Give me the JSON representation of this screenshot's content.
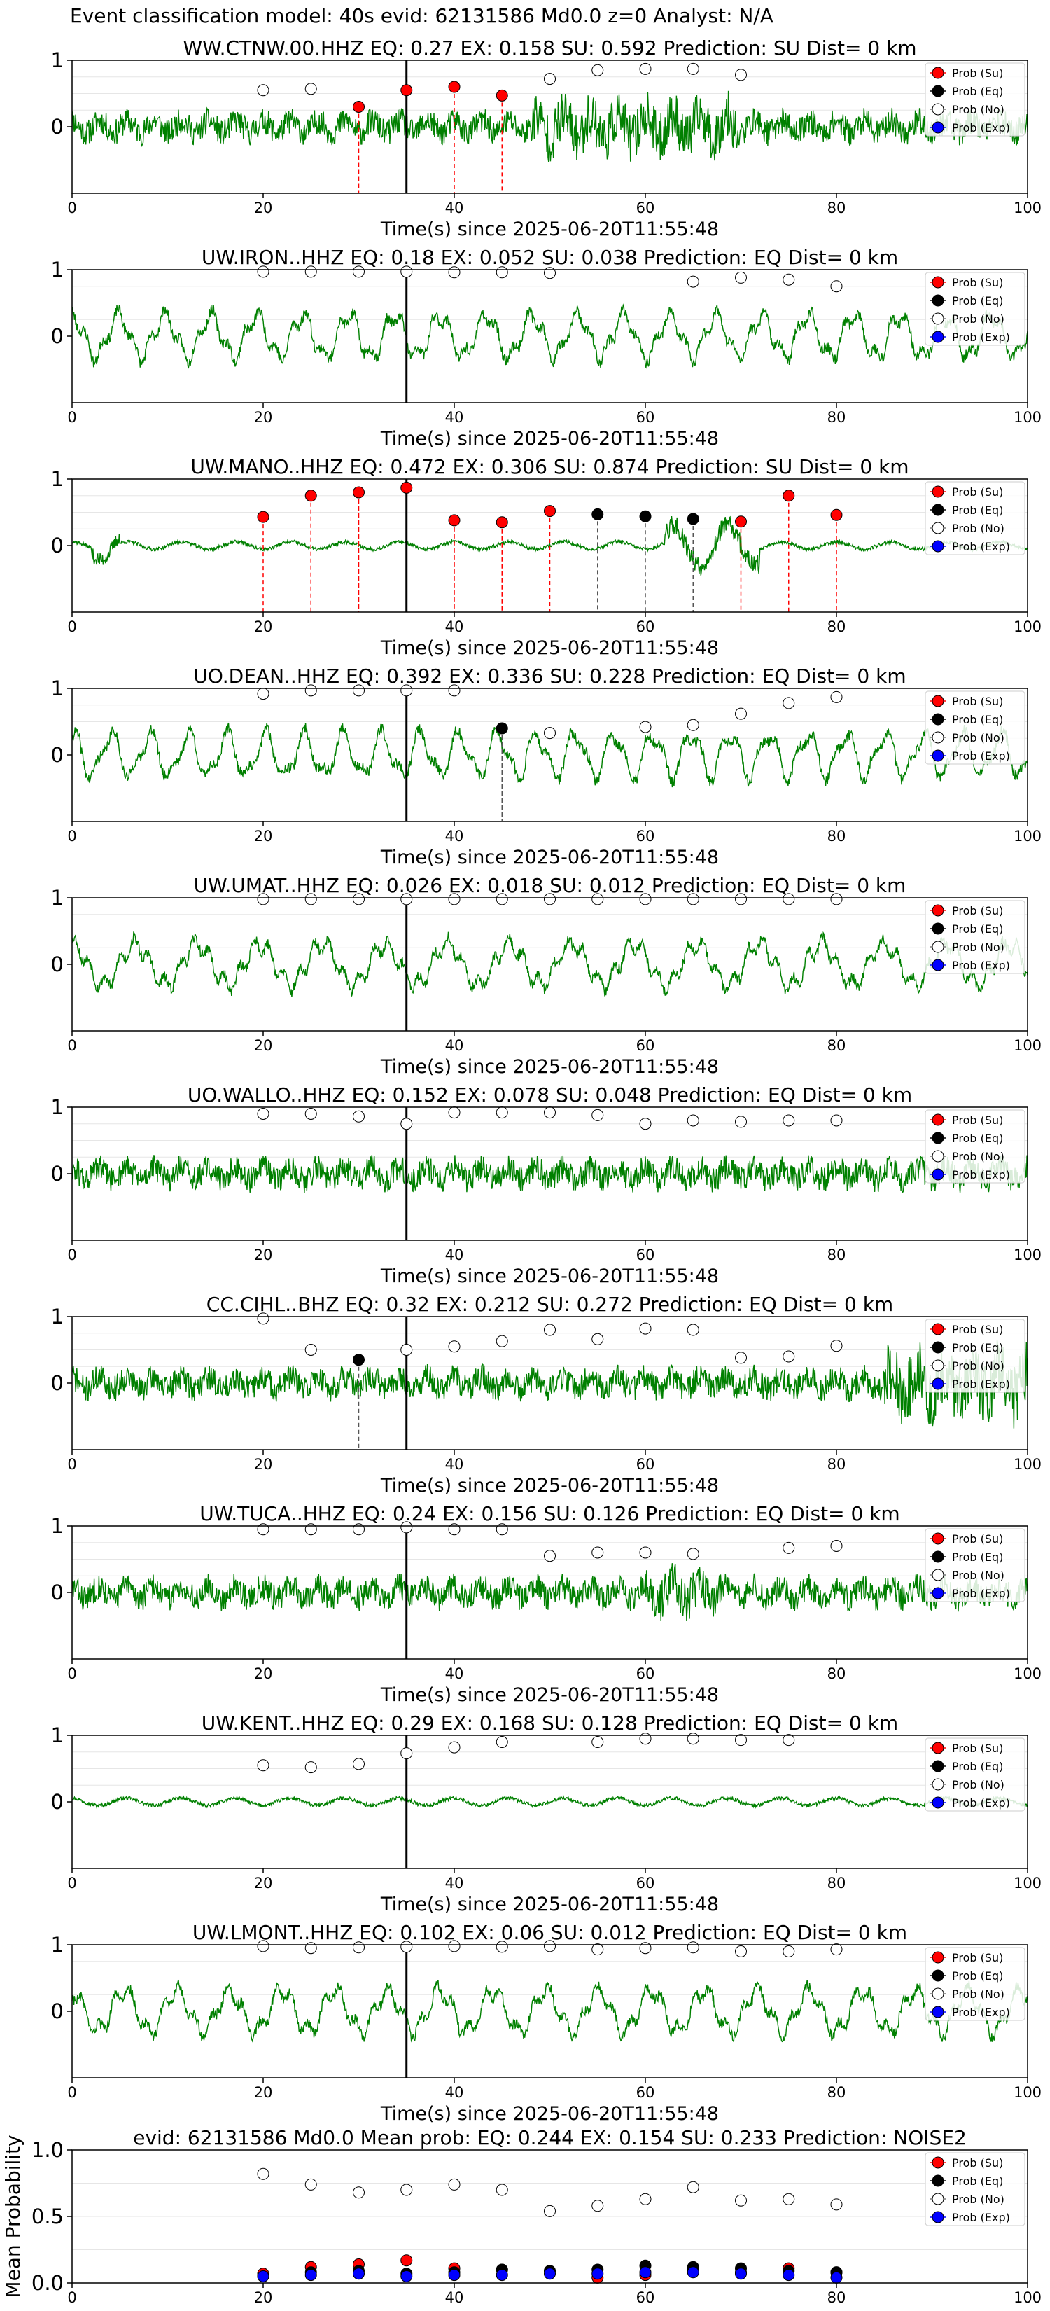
{
  "page": {
    "title": "Event classification model: 40s evid: 62131586 Md0.0 z=0 Analyst: N/A"
  },
  "legend_labels": [
    "Prob (Su)",
    "Prob (Eq)",
    "Prob (No)",
    "Prob (Exp)"
  ],
  "colors": {
    "su": "#ff0000",
    "eq": "#000000",
    "no": "#ffffff",
    "exp": "#0000ff",
    "trace": "#008000",
    "su_line": "#ff0000",
    "eq_line": "#555555"
  },
  "chart_data": [
    {
      "type": "line",
      "title": "WW.CTNW.00.HHZ   EQ: 0.27  EX: 0.158  SU: 0.592   Prediction: SU    Dist= 0 km",
      "xlabel": "Time(s) since 2025-06-20T11:55:48",
      "ylabel": "",
      "xlim": [
        0,
        100
      ],
      "ylim": [
        -1,
        1
      ],
      "xticks": [
        "0",
        "20",
        "40",
        "60",
        "80",
        "100"
      ],
      "yticks": [
        "1",
        "0"
      ],
      "onset": 35,
      "legend": "right",
      "trace_seed": 11,
      "trace_character": "broadband noise, strong energy 50-70s",
      "series": [
        {
          "name": "Prob (Su)",
          "x": [
            30,
            35,
            40,
            45
          ],
          "y": [
            0.3,
            0.55,
            0.6,
            0.47
          ]
        },
        {
          "name": "Prob (Eq)",
          "x": [],
          "y": []
        },
        {
          "name": "Prob (No)",
          "x": [
            20,
            25,
            50,
            55,
            60,
            65,
            70
          ],
          "y": [
            0.55,
            0.57,
            0.72,
            0.85,
            0.87,
            0.87,
            0.78
          ]
        },
        {
          "name": "Prob (Exp)",
          "x": [],
          "y": []
        }
      ],
      "su_lines": [
        30,
        40,
        45
      ],
      "eq_lines": []
    },
    {
      "type": "line",
      "title": "UW.IRON..HHZ   EQ: 0.18  EX: 0.052  SU: 0.038   Prediction: EQ    Dist= 0 km",
      "xlabel": "Time(s) since 2025-06-20T11:55:48",
      "ylabel": "",
      "xlim": [
        0,
        100
      ],
      "ylim": [
        -1,
        1
      ],
      "xticks": [
        "0",
        "20",
        "40",
        "60",
        "80",
        "100"
      ],
      "yticks": [
        "1",
        "0"
      ],
      "onset": 35,
      "legend": "right",
      "trace_seed": 23,
      "series": [
        {
          "name": "Prob (Su)",
          "x": [],
          "y": []
        },
        {
          "name": "Prob (Eq)",
          "x": [],
          "y": []
        },
        {
          "name": "Prob (No)",
          "x": [
            20,
            25,
            30,
            35,
            40,
            45,
            50,
            65,
            70,
            75,
            80
          ],
          "y": [
            0.97,
            0.97,
            0.97,
            0.97,
            0.96,
            0.96,
            0.95,
            0.82,
            0.88,
            0.85,
            0.75
          ]
        },
        {
          "name": "Prob (Exp)",
          "x": [],
          "y": []
        }
      ],
      "su_lines": [],
      "eq_lines": []
    },
    {
      "type": "line",
      "title": "UW.MANO..HHZ   EQ: 0.472  EX: 0.306  SU: 0.874   Prediction: SU    Dist= 0 km",
      "xlabel": "Time(s) since 2025-06-20T11:55:48",
      "ylabel": "",
      "xlim": [
        0,
        100
      ],
      "ylim": [
        -1,
        1
      ],
      "xticks": [
        "0",
        "20",
        "40",
        "60",
        "80",
        "100"
      ],
      "yticks": [
        "1",
        "0"
      ],
      "onset": 35,
      "legend": "right",
      "trace_seed": 37,
      "series": [
        {
          "name": "Prob (Su)",
          "x": [
            20,
            25,
            30,
            35,
            40,
            45,
            50,
            70,
            75,
            80
          ],
          "y": [
            0.43,
            0.75,
            0.8,
            0.87,
            0.38,
            0.35,
            0.52,
            0.36,
            0.75,
            0.46
          ]
        },
        {
          "name": "Prob (Eq)",
          "x": [
            55,
            60,
            65
          ],
          "y": [
            0.47,
            0.44,
            0.4
          ]
        },
        {
          "name": "Prob (No)",
          "x": [],
          "y": []
        },
        {
          "name": "Prob (Exp)",
          "x": [],
          "y": []
        }
      ],
      "su_lines": [
        20,
        25,
        30,
        40,
        45,
        50,
        70,
        75,
        80
      ],
      "eq_lines": [
        55,
        60,
        65
      ]
    },
    {
      "type": "line",
      "title": "UO.DEAN..HHZ   EQ: 0.392  EX: 0.336  SU: 0.228   Prediction: EQ    Dist= 0 km",
      "xlabel": "Time(s) since 2025-06-20T11:55:48",
      "ylabel": "",
      "xlim": [
        0,
        100
      ],
      "ylim": [
        -1,
        1
      ],
      "xticks": [
        "0",
        "20",
        "40",
        "60",
        "80",
        "100"
      ],
      "yticks": [
        "1",
        "0"
      ],
      "onset": 35,
      "legend": "right",
      "trace_seed": 41,
      "series": [
        {
          "name": "Prob (Su)",
          "x": [],
          "y": []
        },
        {
          "name": "Prob (Eq)",
          "x": [
            45
          ],
          "y": [
            0.4
          ]
        },
        {
          "name": "Prob (No)",
          "x": [
            20,
            25,
            30,
            35,
            40,
            50,
            60,
            65,
            70,
            75,
            80
          ],
          "y": [
            0.92,
            0.97,
            0.97,
            0.97,
            0.97,
            0.33,
            0.42,
            0.45,
            0.62,
            0.78,
            0.87
          ]
        },
        {
          "name": "Prob (Exp)",
          "x": [],
          "y": []
        }
      ],
      "su_lines": [],
      "eq_lines": [
        45
      ]
    },
    {
      "type": "line",
      "title": "UW.UMAT..HHZ   EQ: 0.026  EX: 0.018  SU: 0.012   Prediction: EQ    Dist= 0 km",
      "xlabel": "Time(s) since 2025-06-20T11:55:48",
      "ylabel": "",
      "xlim": [
        0,
        100
      ],
      "ylim": [
        -1,
        1
      ],
      "xticks": [
        "0",
        "20",
        "40",
        "60",
        "80",
        "100"
      ],
      "yticks": [
        "1",
        "0"
      ],
      "onset": 35,
      "legend": "right",
      "trace_seed": 53,
      "series": [
        {
          "name": "Prob (Su)",
          "x": [],
          "y": []
        },
        {
          "name": "Prob (Eq)",
          "x": [],
          "y": []
        },
        {
          "name": "Prob (No)",
          "x": [
            20,
            25,
            30,
            35,
            40,
            45,
            50,
            55,
            60,
            65,
            70,
            75,
            80
          ],
          "y": [
            0.98,
            0.98,
            0.98,
            0.98,
            0.98,
            0.98,
            0.98,
            0.98,
            0.98,
            0.98,
            0.98,
            0.98,
            0.98
          ]
        },
        {
          "name": "Prob (Exp)",
          "x": [],
          "y": []
        }
      ],
      "su_lines": [],
      "eq_lines": []
    },
    {
      "type": "line",
      "title": "UO.WALLO..HHZ   EQ: 0.152  EX: 0.078  SU: 0.048   Prediction: EQ    Dist= 0 km",
      "xlabel": "Time(s) since 2025-06-20T11:55:48",
      "ylabel": "",
      "xlim": [
        0,
        100
      ],
      "ylim": [
        -1,
        1
      ],
      "xticks": [
        "0",
        "20",
        "40",
        "60",
        "80",
        "100"
      ],
      "yticks": [
        "1",
        "0"
      ],
      "onset": 35,
      "legend": "right",
      "trace_seed": 61,
      "series": [
        {
          "name": "Prob (Su)",
          "x": [],
          "y": []
        },
        {
          "name": "Prob (Eq)",
          "x": [],
          "y": []
        },
        {
          "name": "Prob (No)",
          "x": [
            20,
            25,
            30,
            35,
            40,
            45,
            50,
            55,
            60,
            65,
            70,
            75,
            80
          ],
          "y": [
            0.9,
            0.9,
            0.86,
            0.75,
            0.92,
            0.92,
            0.92,
            0.88,
            0.75,
            0.8,
            0.78,
            0.8,
            0.8
          ]
        },
        {
          "name": "Prob (Exp)",
          "x": [],
          "y": []
        }
      ],
      "su_lines": [],
      "eq_lines": []
    },
    {
      "type": "line",
      "title": "CC.CIHL..BHZ   EQ: 0.32  EX: 0.212  SU: 0.272   Prediction: EQ    Dist= 0 km",
      "xlabel": "Time(s) since 2025-06-20T11:55:48",
      "ylabel": "",
      "xlim": [
        0,
        100
      ],
      "ylim": [
        -1,
        1
      ],
      "xticks": [
        "0",
        "20",
        "40",
        "60",
        "80",
        "100"
      ],
      "yticks": [
        "1",
        "0"
      ],
      "onset": 35,
      "legend": "right",
      "trace_seed": 71,
      "series": [
        {
          "name": "Prob (Su)",
          "x": [],
          "y": []
        },
        {
          "name": "Prob (Eq)",
          "x": [
            30
          ],
          "y": [
            0.35
          ]
        },
        {
          "name": "Prob (No)",
          "x": [
            20,
            25,
            35,
            40,
            45,
            50,
            55,
            60,
            65,
            70,
            75,
            80
          ],
          "y": [
            0.97,
            0.5,
            0.5,
            0.55,
            0.63,
            0.8,
            0.66,
            0.82,
            0.8,
            0.38,
            0.4,
            0.56
          ]
        },
        {
          "name": "Prob (Exp)",
          "x": [],
          "y": []
        }
      ],
      "su_lines": [],
      "eq_lines": [
        30
      ]
    },
    {
      "type": "line",
      "title": "UW.TUCA..HHZ   EQ: 0.24  EX: 0.156  SU: 0.126   Prediction: EQ    Dist= 0 km",
      "xlabel": "Time(s) since 2025-06-20T11:55:48",
      "ylabel": "",
      "xlim": [
        0,
        100
      ],
      "ylim": [
        -1,
        1
      ],
      "xticks": [
        "0",
        "20",
        "40",
        "60",
        "80",
        "100"
      ],
      "yticks": [
        "1",
        "0"
      ],
      "onset": 35,
      "legend": "right",
      "trace_seed": 83,
      "series": [
        {
          "name": "Prob (Su)",
          "x": [],
          "y": []
        },
        {
          "name": "Prob (Eq)",
          "x": [],
          "y": []
        },
        {
          "name": "Prob (No)",
          "x": [
            20,
            25,
            30,
            35,
            40,
            45,
            50,
            55,
            60,
            65,
            75,
            80
          ],
          "y": [
            0.95,
            0.95,
            0.95,
            0.98,
            0.95,
            0.95,
            0.55,
            0.6,
            0.6,
            0.58,
            0.67,
            0.7
          ]
        },
        {
          "name": "Prob (Exp)",
          "x": [],
          "y": []
        }
      ],
      "su_lines": [],
      "eq_lines": []
    },
    {
      "type": "line",
      "title": "UW.KENT..HHZ   EQ: 0.29  EX: 0.168  SU: 0.128   Prediction: EQ    Dist= 0 km",
      "xlabel": "Time(s) since 2025-06-20T11:55:48",
      "ylabel": "",
      "xlim": [
        0,
        100
      ],
      "ylim": [
        -1,
        1
      ],
      "xticks": [
        "0",
        "20",
        "40",
        "60",
        "80",
        "100"
      ],
      "yticks": [
        "1",
        "0"
      ],
      "onset": 35,
      "legend": "right",
      "trace_seed": 97,
      "series": [
        {
          "name": "Prob (Su)",
          "x": [],
          "y": []
        },
        {
          "name": "Prob (Eq)",
          "x": [],
          "y": []
        },
        {
          "name": "Prob (No)",
          "x": [
            20,
            25,
            30,
            35,
            40,
            45,
            55,
            60,
            65,
            70,
            75
          ],
          "y": [
            0.55,
            0.52,
            0.57,
            0.73,
            0.82,
            0.9,
            0.9,
            0.95,
            0.95,
            0.93,
            0.93
          ]
        },
        {
          "name": "Prob (Exp)",
          "x": [],
          "y": []
        }
      ],
      "su_lines": [],
      "eq_lines": []
    },
    {
      "type": "line",
      "title": "UW.LMONT..HHZ   EQ: 0.102  EX: 0.06  SU: 0.012   Prediction: EQ    Dist= 0 km",
      "xlabel": "Time(s) since 2025-06-20T11:55:48",
      "ylabel": "",
      "xlim": [
        0,
        100
      ],
      "ylim": [
        -1,
        1
      ],
      "xticks": [
        "0",
        "20",
        "40",
        "60",
        "80",
        "100"
      ],
      "yticks": [
        "1",
        "0"
      ],
      "onset": 35,
      "legend": "right",
      "trace_seed": 103,
      "series": [
        {
          "name": "Prob (Su)",
          "x": [],
          "y": []
        },
        {
          "name": "Prob (Eq)",
          "x": [],
          "y": []
        },
        {
          "name": "Prob (No)",
          "x": [
            20,
            25,
            30,
            35,
            40,
            45,
            50,
            55,
            60,
            65,
            70,
            75,
            80
          ],
          "y": [
            0.98,
            0.95,
            0.96,
            0.97,
            0.98,
            0.97,
            0.98,
            0.93,
            0.95,
            0.96,
            0.9,
            0.9,
            0.93
          ]
        },
        {
          "name": "Prob (Exp)",
          "x": [],
          "y": []
        }
      ],
      "su_lines": [],
      "eq_lines": []
    },
    {
      "type": "scatter",
      "title": "evid: 62131586  Md0.0   Mean prob:   EQ: 0.244  EX: 0.154  SU: 0.233   Prediction: NOISE2",
      "xlabel": "",
      "ylabel": "Mean Probability",
      "xlim": [
        0,
        100
      ],
      "ylim": [
        0,
        1
      ],
      "xticks": [
        "0",
        "20",
        "40",
        "60",
        "80",
        "100"
      ],
      "yticks": [
        "1.0",
        "0.5",
        "0.0"
      ],
      "legend": "right",
      "series": [
        {
          "name": "Prob (Su)",
          "x": [
            20,
            25,
            30,
            35,
            40,
            45,
            50,
            55,
            60,
            65,
            70,
            75,
            80
          ],
          "y": [
            0.07,
            0.12,
            0.14,
            0.17,
            0.11,
            0.1,
            0.09,
            0.04,
            0.06,
            0.1,
            0.08,
            0.11,
            0.08
          ]
        },
        {
          "name": "Prob (Eq)",
          "x": [
            20,
            25,
            30,
            35,
            40,
            45,
            50,
            55,
            60,
            65,
            70,
            75,
            80
          ],
          "y": [
            0.05,
            0.08,
            0.09,
            0.07,
            0.08,
            0.1,
            0.09,
            0.1,
            0.13,
            0.12,
            0.11,
            0.09,
            0.08
          ]
        },
        {
          "name": "Prob (No)",
          "x": [
            20,
            25,
            30,
            35,
            40,
            45,
            50,
            55,
            60,
            65,
            70,
            75,
            80
          ],
          "y": [
            0.82,
            0.74,
            0.68,
            0.7,
            0.74,
            0.7,
            0.54,
            0.58,
            0.63,
            0.72,
            0.62,
            0.63,
            0.59
          ]
        },
        {
          "name": "Prob (Exp)",
          "x": [
            20,
            25,
            30,
            35,
            40,
            45,
            50,
            55,
            60,
            65,
            70,
            75,
            80
          ],
          "y": [
            0.05,
            0.06,
            0.07,
            0.05,
            0.06,
            0.06,
            0.07,
            0.07,
            0.08,
            0.08,
            0.07,
            0.06,
            0.04
          ]
        }
      ]
    }
  ]
}
